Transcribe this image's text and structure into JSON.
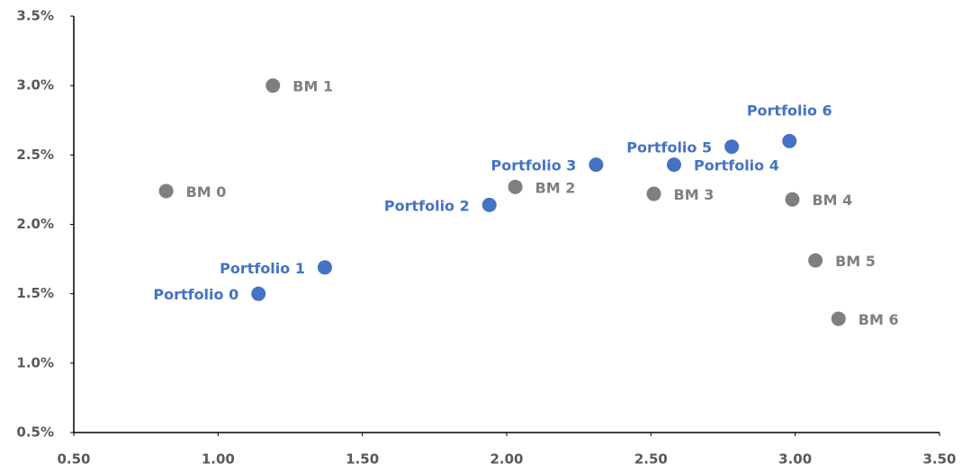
{
  "chart_data": {
    "type": "scatter",
    "xlim": [
      0.5,
      3.5
    ],
    "xticks": [
      {
        "value": 0.5,
        "label": "0.50"
      },
      {
        "value": 1,
        "label": "1.00"
      },
      {
        "value": 1.5,
        "label": "1.50"
      },
      {
        "value": 2,
        "label": "2.00"
      },
      {
        "value": 2.5,
        "label": "2.50"
      },
      {
        "value": 3,
        "label": "3.00"
      },
      {
        "value": 3.5,
        "label": "3.50"
      }
    ],
    "ylim": [
      0.5,
      3.5
    ],
    "yticks": [
      {
        "value": 0.5,
        "label": "0.5%"
      },
      {
        "value": 1,
        "label": "1.0%"
      },
      {
        "value": 1.5,
        "label": "1.5%"
      },
      {
        "value": 2,
        "label": "2.0%"
      },
      {
        "value": 2.5,
        "label": "2.5%"
      },
      {
        "value": 3,
        "label": "3.0%"
      },
      {
        "value": 3.5,
        "label": "3.5%"
      }
    ],
    "series": [
      {
        "color": "#7f7f7f",
        "point_labels": [
          "BM 0",
          "BM 1",
          "BM 2",
          "BM 3",
          "BM 4",
          "BM 5",
          "BM 6"
        ],
        "x": [
          0.82,
          1.19,
          2.03,
          2.51,
          2.99,
          3.07,
          3.15
        ],
        "values": [
          2.24,
          3.0,
          2.27,
          2.22,
          2.18,
          1.74,
          1.32
        ]
      },
      {
        "color": "#4472c4",
        "point_labels": [
          "Portfolio 0",
          "Portfolio 1",
          "Portfolio 2",
          "Portfolio 3",
          "Portfolio 4",
          "Portfolio 5",
          "Portfolio 6"
        ],
        "x": [
          1.14,
          1.37,
          1.94,
          2.31,
          2.58,
          2.78,
          2.98
        ],
        "values": [
          1.5,
          1.69,
          2.14,
          2.43,
          2.43,
          2.56,
          2.6
        ]
      }
    ]
  }
}
